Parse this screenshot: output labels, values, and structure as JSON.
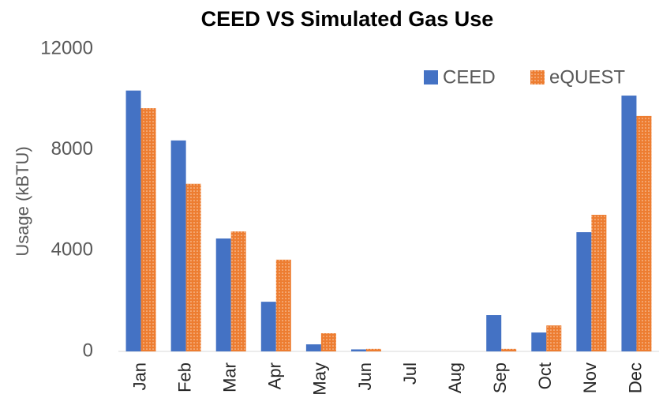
{
  "chart_data": {
    "type": "bar",
    "title": "CEED VS Simulated Gas Use",
    "y_label": "Usage (kBTU)",
    "categories": [
      "Jan",
      "Feb",
      "Mar",
      "Apr",
      "May",
      "Jun",
      "Jul",
      "Aug",
      "Sep",
      "Oct",
      "Nov",
      "Dec"
    ],
    "series": [
      {
        "name": "CEED",
        "color": "#4472c4",
        "values": [
          10350,
          8370,
          4480,
          1970,
          280,
          80,
          0,
          0,
          1440,
          750,
          4730,
          10150
        ]
      },
      {
        "name": "eQUEST",
        "color": "#ed7d31",
        "values": [
          9650,
          6650,
          4760,
          3640,
          720,
          100,
          0,
          0,
          100,
          1030,
          5420,
          9340
        ]
      }
    ],
    "ylim": [
      0,
      12000
    ],
    "yticks": [
      0,
      4000,
      8000,
      12000
    ],
    "grid": false,
    "legend": "top-right"
  }
}
